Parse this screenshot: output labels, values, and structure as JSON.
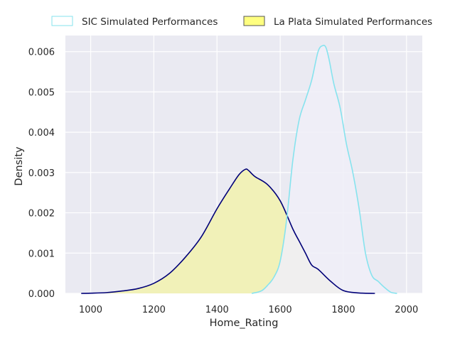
{
  "chart_data": {
    "type": "area",
    "xlabel": "Home_Rating",
    "ylabel": "Density",
    "xlim": [
      920,
      2050
    ],
    "ylim": [
      0,
      0.0064
    ],
    "xticks": [
      1000,
      1200,
      1400,
      1600,
      1800,
      2000
    ],
    "yticks": [
      0.0,
      0.001,
      0.002,
      0.003,
      0.004,
      0.005,
      0.006
    ],
    "grid": true,
    "legend_position": "top",
    "series": [
      {
        "name": "SIC Simulated Performances",
        "line_color": "#86e3ee",
        "fill_color": "#f0eff8",
        "legend_edge": "#86e3ee",
        "legend_fill": "#ffffff",
        "x": [
          1510,
          1540,
          1560,
          1580,
          1600,
          1620,
          1640,
          1660,
          1680,
          1700,
          1720,
          1735,
          1745,
          1755,
          1770,
          1790,
          1810,
          1830,
          1850,
          1870,
          1890,
          1910,
          1930,
          1950,
          1970
        ],
        "y": [
          0.0,
          6e-05,
          0.0002,
          0.0004,
          0.0008,
          0.0018,
          0.0033,
          0.0043,
          0.0048,
          0.0053,
          0.006,
          0.00615,
          0.0061,
          0.0058,
          0.0052,
          0.0046,
          0.0037,
          0.003,
          0.0021,
          0.001,
          0.00045,
          0.0003,
          0.00015,
          3e-05,
          0.0
        ]
      },
      {
        "name": "La Plata Simulated Performances",
        "line_color": "#000078",
        "fill_color": "#f1f1b8",
        "legend_edge": "#555555",
        "legend_fill": "#ffff80",
        "x": [
          970,
          1000,
          1050,
          1100,
          1150,
          1200,
          1250,
          1300,
          1350,
          1400,
          1440,
          1470,
          1490,
          1500,
          1520,
          1560,
          1600,
          1640,
          1660,
          1680,
          1700,
          1720,
          1760,
          1800,
          1850,
          1900
        ],
        "y": [
          0.0,
          5e-06,
          2e-05,
          6e-05,
          0.00012,
          0.00025,
          0.0005,
          0.0009,
          0.0014,
          0.0021,
          0.0026,
          0.00295,
          0.00308,
          0.00305,
          0.0029,
          0.0027,
          0.0023,
          0.0016,
          0.0013,
          0.001,
          0.0007,
          0.0006,
          0.0003,
          7e-05,
          1e-05,
          0.0
        ]
      }
    ]
  }
}
